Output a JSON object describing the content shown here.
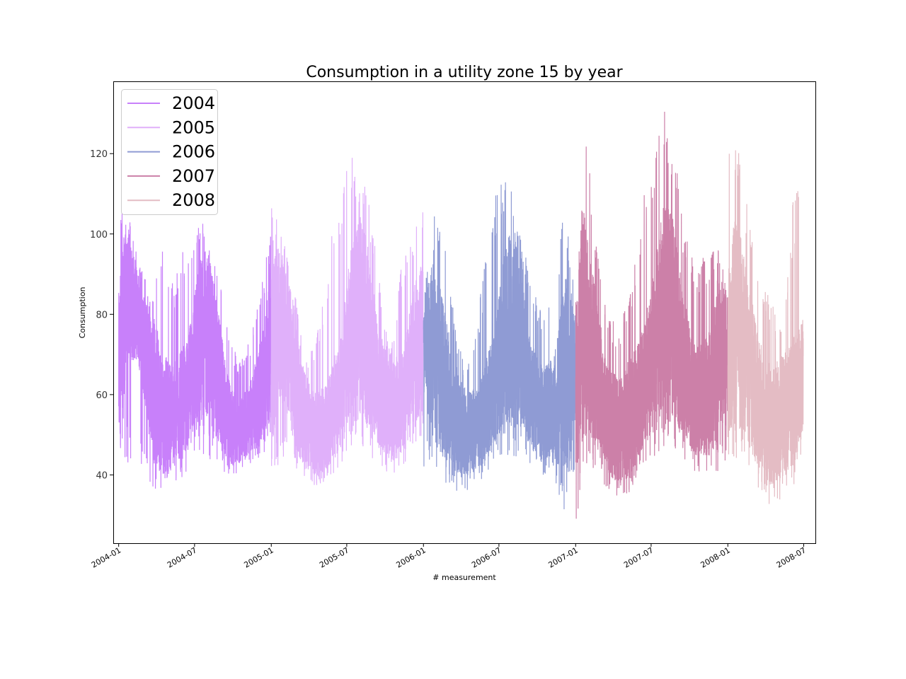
{
  "chart_data": {
    "type": "line",
    "title": "Consumption in a utility zone 15 by year",
    "xlabel": "# measurement",
    "ylabel": "Consumption",
    "x_range": [
      "2003-12-19",
      "2008-07-29"
    ],
    "ylim": [
      23,
      138
    ],
    "yticks": [
      40,
      60,
      80,
      100,
      120
    ],
    "xticks": [
      {
        "date": "2004-01-01",
        "label": "2004-01"
      },
      {
        "date": "2004-07-01",
        "label": "2004-07"
      },
      {
        "date": "2005-01-01",
        "label": "2005-01"
      },
      {
        "date": "2005-07-01",
        "label": "2005-07"
      },
      {
        "date": "2006-01-01",
        "label": "2006-01"
      },
      {
        "date": "2006-07-01",
        "label": "2006-07"
      },
      {
        "date": "2007-01-01",
        "label": "2007-01"
      },
      {
        "date": "2007-07-01",
        "label": "2007-07"
      },
      {
        "date": "2008-01-01",
        "label": "2008-01"
      },
      {
        "date": "2008-07-01",
        "label": "2008-07"
      }
    ],
    "grid": false,
    "legend_position": "top-left",
    "series": [
      {
        "name": "2004",
        "color": "#c880fa",
        "points": [
          [
            "2004-01-01",
            65
          ],
          [
            "2004-01-20",
            85
          ],
          [
            "2004-02-15",
            80
          ],
          [
            "2004-03-15",
            65
          ],
          [
            "2004-04-15",
            55
          ],
          [
            "2004-05-15",
            55
          ],
          [
            "2004-06-15",
            60
          ],
          [
            "2004-07-10",
            72
          ],
          [
            "2004-08-01",
            75
          ],
          [
            "2004-08-20",
            68
          ],
          [
            "2004-09-15",
            55
          ],
          [
            "2004-10-15",
            50
          ],
          [
            "2004-11-15",
            55
          ],
          [
            "2004-12-10",
            62
          ],
          [
            "2004-12-31",
            72
          ]
        ],
        "lows": [
          38,
          42,
          40,
          37,
          35,
          37,
          40,
          44,
          45,
          42,
          40,
          40,
          42,
          44,
          48
        ],
        "highs": [
          110,
          104,
          92,
          85,
          96,
          88,
          97,
          104,
          103,
          95,
          78,
          68,
          73,
          84,
          104
        ]
      },
      {
        "name": "2005",
        "color": "#e0b0fa",
        "points": [
          [
            "2005-01-01",
            70
          ],
          [
            "2005-01-20",
            78
          ],
          [
            "2005-02-15",
            70
          ],
          [
            "2005-03-15",
            55
          ],
          [
            "2005-04-15",
            50
          ],
          [
            "2005-05-15",
            52
          ],
          [
            "2005-06-15",
            60
          ],
          [
            "2005-07-10",
            75
          ],
          [
            "2005-08-01",
            80
          ],
          [
            "2005-08-20",
            75
          ],
          [
            "2005-09-15",
            62
          ],
          [
            "2005-10-15",
            55
          ],
          [
            "2005-11-15",
            60
          ],
          [
            "2005-12-10",
            70
          ],
          [
            "2005-12-31",
            75
          ]
        ],
        "lows": [
          40,
          44,
          42,
          38,
          36,
          37,
          40,
          46,
          47,
          45,
          42,
          39,
          41,
          46,
          50
        ],
        "highs": [
          108,
          100,
          90,
          70,
          72,
          88,
          108,
          120,
          118,
          110,
          88,
          70,
          95,
          102,
          106
        ]
      },
      {
        "name": "2006",
        "color": "#8f9bd4",
        "points": [
          [
            "2006-01-01",
            70
          ],
          [
            "2006-01-20",
            72
          ],
          [
            "2006-02-15",
            65
          ],
          [
            "2006-03-15",
            55
          ],
          [
            "2006-04-15",
            50
          ],
          [
            "2006-05-15",
            52
          ],
          [
            "2006-06-15",
            60
          ],
          [
            "2006-07-10",
            72
          ],
          [
            "2006-08-01",
            78
          ],
          [
            "2006-08-20",
            72
          ],
          [
            "2006-09-15",
            60
          ],
          [
            "2006-10-15",
            55
          ],
          [
            "2006-11-15",
            58
          ],
          [
            "2006-12-10",
            65
          ],
          [
            "2006-12-31",
            65
          ]
        ],
        "lows": [
          42,
          40,
          38,
          36,
          36,
          38,
          40,
          44,
          45,
          44,
          42,
          40,
          40,
          30,
          42
        ],
        "highs": [
          84,
          105,
          100,
          75,
          66,
          80,
          100,
          115,
          112,
          100,
          88,
          80,
          88,
          108,
          85
        ]
      },
      {
        "name": "2007",
        "color": "#cc80a8",
        "points": [
          [
            "2007-01-01",
            60
          ],
          [
            "2007-01-20",
            78
          ],
          [
            "2007-02-15",
            68
          ],
          [
            "2007-03-15",
            55
          ],
          [
            "2007-04-15",
            50
          ],
          [
            "2007-05-15",
            55
          ],
          [
            "2007-06-15",
            62
          ],
          [
            "2007-07-10",
            72
          ],
          [
            "2007-08-01",
            82
          ],
          [
            "2007-08-20",
            80
          ],
          [
            "2007-09-15",
            68
          ],
          [
            "2007-10-15",
            58
          ],
          [
            "2007-11-15",
            60
          ],
          [
            "2007-12-10",
            70
          ],
          [
            "2007-12-31",
            68
          ]
        ],
        "lows": [
          28,
          42,
          40,
          36,
          32,
          34,
          40,
          44,
          46,
          46,
          44,
          40,
          40,
          40,
          42
        ],
        "highs": [
          90,
          125,
          95,
          80,
          78,
          85,
          105,
          120,
          132,
          125,
          102,
          92,
          95,
          100,
          90
        ]
      },
      {
        "name": "2008",
        "color": "#e4bcc4",
        "points": [
          [
            "2008-01-01",
            70
          ],
          [
            "2008-01-20",
            80
          ],
          [
            "2008-02-15",
            70
          ],
          [
            "2008-03-15",
            58
          ],
          [
            "2008-04-15",
            52
          ],
          [
            "2008-05-15",
            55
          ],
          [
            "2008-06-15",
            60
          ],
          [
            "2008-06-30",
            65
          ]
        ],
        "lows": [
          44,
          44,
          40,
          36,
          32,
          34,
          36,
          46
        ],
        "highs": [
          123,
          121,
          104,
          88,
          84,
          76,
          108,
          117
        ]
      }
    ]
  }
}
